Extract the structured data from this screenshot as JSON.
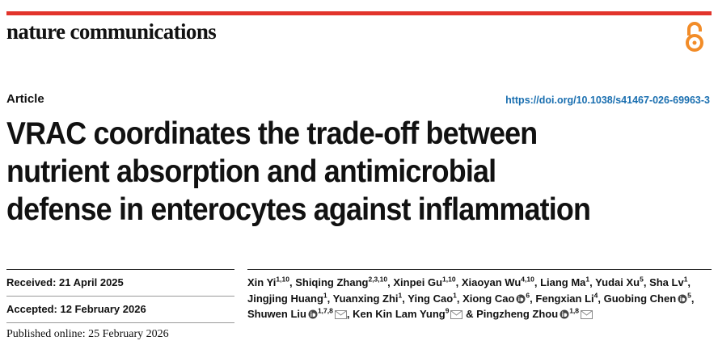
{
  "header": {
    "journal": "nature communications",
    "article_type": "Article",
    "doi": "https://doi.org/10.1038/s41467-026-69963-3"
  },
  "title": {
    "lines": [
      "VRAC coordinates the trade-off between",
      "nutrient absorption and antimicrobial",
      "defense in enterocytes against inflammation"
    ]
  },
  "dates": [
    {
      "text": "Received: 21 April 2025"
    },
    {
      "text": "Accepted: 12 February 2026"
    },
    {
      "text": "Published online: 25 February 2026"
    }
  ],
  "authors": [
    {
      "name": "Xin Yi",
      "sup": "1,10",
      "orcid": false,
      "email": false,
      "sep": ","
    },
    {
      "name": "Shiqing Zhang",
      "sup": "2,3,10",
      "orcid": false,
      "email": false,
      "sep": ","
    },
    {
      "name": "Xinpei Gu",
      "sup": "1,10",
      "orcid": false,
      "email": false,
      "sep": ","
    },
    {
      "name": "Xiaoyan Wu",
      "sup": "4,10",
      "orcid": false,
      "email": false,
      "sep": ","
    },
    {
      "name": "Liang Ma",
      "sup": "1",
      "orcid": false,
      "email": false,
      "sep": ","
    },
    {
      "name": "Yudai Xu",
      "sup": "5",
      "orcid": false,
      "email": false,
      "sep": ","
    },
    {
      "name": "Sha Lv",
      "sup": "1",
      "orcid": false,
      "email": false,
      "sep": ","
    },
    {
      "name": "Jingjing Huang",
      "sup": "1",
      "orcid": false,
      "email": false,
      "sep": ","
    },
    {
      "name": "Yuanxing Zhi",
      "sup": "1",
      "orcid": false,
      "email": false,
      "sep": ","
    },
    {
      "name": "Ying Cao",
      "sup": "1",
      "orcid": false,
      "email": false,
      "sep": ","
    },
    {
      "name": "Xiong Cao",
      "sup": "6",
      "orcid": true,
      "email": false,
      "sep": ","
    },
    {
      "name": "Fengxian Li",
      "sup": "4",
      "orcid": false,
      "email": false,
      "sep": ","
    },
    {
      "name": "Guobing Chen",
      "sup": "5",
      "orcid": true,
      "email": false,
      "sep": ","
    },
    {
      "name": "Shuwen Liu",
      "sup": "1,7,8",
      "orcid": true,
      "email": true,
      "sep": ","
    },
    {
      "name": "Ken Kin Lam Yung",
      "sup": "9",
      "orcid": false,
      "email": true,
      "sep": "&"
    },
    {
      "name": "Pingzheng Zhou",
      "sup": "1,8",
      "orcid": true,
      "email": true
    }
  ]
}
